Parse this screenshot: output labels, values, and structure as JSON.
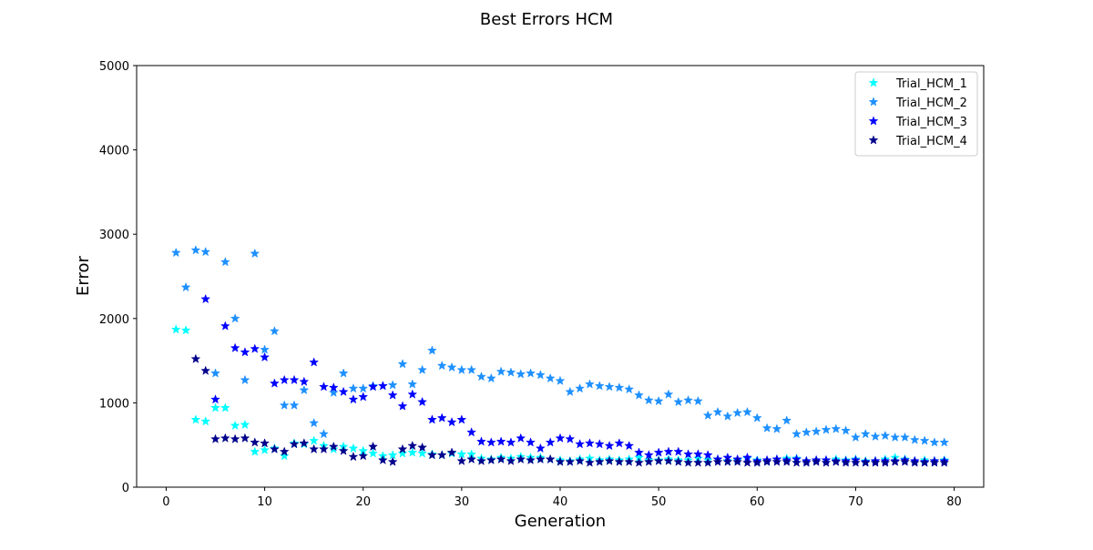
{
  "chart_data": {
    "type": "scatter",
    "title": "Best Errors HCM",
    "xlabel": "Generation",
    "ylabel": "Error",
    "xlim": [
      -3,
      83
    ],
    "ylim": [
      0,
      5000
    ],
    "xticks": [
      0,
      10,
      20,
      30,
      40,
      50,
      60,
      70,
      80
    ],
    "yticks": [
      0,
      1000,
      2000,
      3000,
      4000,
      5000
    ],
    "grid": false,
    "legend_position": "top-right",
    "marker": "star",
    "x": [
      1,
      2,
      3,
      4,
      5,
      6,
      7,
      8,
      9,
      10,
      11,
      12,
      13,
      14,
      15,
      16,
      17,
      18,
      19,
      20,
      21,
      22,
      23,
      24,
      25,
      26,
      27,
      28,
      29,
      30,
      31,
      32,
      33,
      34,
      35,
      36,
      37,
      38,
      39,
      40,
      41,
      42,
      43,
      44,
      45,
      46,
      47,
      48,
      49,
      50,
      51,
      52,
      53,
      54,
      55,
      56,
      57,
      58,
      59,
      60,
      61,
      62,
      63,
      64,
      65,
      66,
      67,
      68,
      69,
      70,
      71,
      72,
      73,
      74,
      75,
      76,
      77,
      78,
      79
    ],
    "series": [
      {
        "name": "Trial_HCM_1",
        "color": "#00ffff",
        "values": [
          1870,
          1860,
          800,
          780,
          940,
          940,
          730,
          740,
          420,
          440,
          460,
          370,
          520,
          510,
          550,
          490,
          450,
          480,
          460,
          430,
          400,
          370,
          380,
          400,
          410,
          400,
          390,
          380,
          400,
          390,
          390,
          340,
          330,
          350,
          340,
          360,
          350,
          350,
          330,
          320,
          310,
          330,
          340,
          320,
          330,
          320,
          330,
          350,
          320,
          320,
          330,
          320,
          320,
          340,
          320,
          330,
          310,
          320,
          340,
          320,
          300,
          330,
          340,
          340,
          310,
          320,
          320,
          330,
          320,
          330,
          310,
          310,
          330,
          350,
          330,
          310,
          320,
          310,
          320
        ]
      },
      {
        "name": "Trial_HCM_2",
        "color": "#1e90ff",
        "values": [
          2780,
          2370,
          2810,
          2790,
          1350,
          2670,
          2000,
          1270,
          2770,
          1630,
          1850,
          970,
          970,
          1150,
          760,
          630,
          1120,
          1350,
          1170,
          1170,
          1200,
          1200,
          1210,
          1460,
          1220,
          1390,
          1620,
          1440,
          1420,
          1390,
          1390,
          1310,
          1290,
          1370,
          1360,
          1340,
          1350,
          1330,
          1290,
          1260,
          1130,
          1170,
          1220,
          1200,
          1190,
          1180,
          1160,
          1090,
          1030,
          1020,
          1100,
          1010,
          1030,
          1020,
          850,
          890,
          840,
          880,
          890,
          820,
          700,
          690,
          790,
          630,
          650,
          660,
          680,
          690,
          670,
          590,
          630,
          600,
          610,
          590,
          590,
          560,
          550,
          530,
          530
        ]
      },
      {
        "name": "Trial_HCM_3",
        "color": "#0000ff",
        "values": [
          null,
          null,
          null,
          2230,
          1040,
          1910,
          1650,
          1600,
          1640,
          1540,
          1230,
          1270,
          1270,
          1250,
          1480,
          1190,
          1180,
          1130,
          1040,
          1070,
          1190,
          1200,
          1090,
          960,
          1100,
          1010,
          800,
          820,
          770,
          800,
          650,
          540,
          530,
          540,
          530,
          580,
          530,
          460,
          530,
          580,
          570,
          510,
          520,
          510,
          490,
          520,
          490,
          410,
          380,
          410,
          420,
          420,
          390,
          390,
          380,
          330,
          350,
          330,
          350,
          310,
          320,
          330,
          320,
          330,
          310,
          320,
          320,
          310,
          310,
          320,
          300,
          310,
          310,
          310,
          320,
          310,
          300,
          310,
          310
        ]
      },
      {
        "name": "Trial_HCM_4",
        "color": "#00008b",
        "values": [
          null,
          null,
          1520,
          1380,
          570,
          580,
          570,
          580,
          530,
          520,
          450,
          420,
          510,
          520,
          450,
          450,
          480,
          430,
          360,
          370,
          480,
          320,
          300,
          450,
          490,
          470,
          380,
          380,
          410,
          310,
          330,
          310,
          320,
          330,
          310,
          330,
          320,
          330,
          330,
          300,
          300,
          310,
          290,
          300,
          310,
          300,
          300,
          290,
          300,
          310,
          310,
          300,
          290,
          290,
          290,
          300,
          300,
          300,
          290,
          290,
          300,
          300,
          300,
          290,
          290,
          300,
          290,
          300,
          290,
          290,
          290,
          290,
          290,
          300,
          300,
          290,
          290,
          290,
          290
        ]
      }
    ]
  }
}
